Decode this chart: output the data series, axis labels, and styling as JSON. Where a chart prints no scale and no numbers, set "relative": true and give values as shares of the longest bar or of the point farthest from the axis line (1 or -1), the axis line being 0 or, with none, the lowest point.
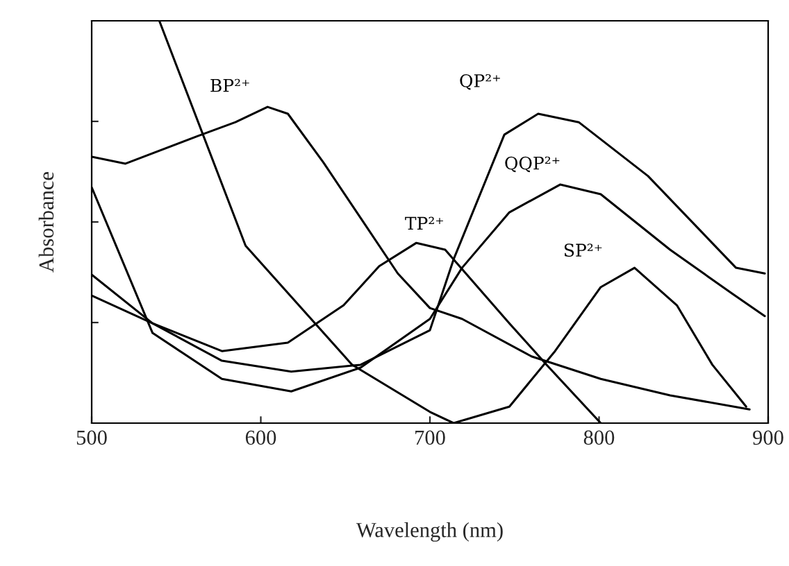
{
  "chart_data": {
    "type": "line",
    "relative": true,
    "xlabel": "Wavelength (nm)",
    "ylabel": "Absorbance",
    "xlim": [
      500,
      900
    ],
    "xticks": [
      500,
      600,
      700,
      800,
      900
    ],
    "grid": false,
    "marker": "none",
    "line_style": "solid",
    "series": [
      {
        "name": "BP²⁺",
        "color": "#000000",
        "x": [
          500,
          520,
          563,
          585,
          604,
          616,
          637,
          659,
          681,
          700,
          719,
          760,
          801,
          842,
          889
        ],
        "values": [
          0.662,
          0.645,
          0.714,
          0.748,
          0.786,
          0.769,
          0.648,
          0.51,
          0.372,
          0.286,
          0.259,
          0.166,
          0.11,
          0.069,
          0.034
        ]
      },
      {
        "name": "TP²⁺",
        "color": "#000000",
        "x": [
          500,
          536,
          577,
          616,
          649,
          670,
          692,
          709,
          747,
          769,
          801
        ],
        "values": [
          0.369,
          0.248,
          0.179,
          0.2,
          0.293,
          0.39,
          0.448,
          0.431,
          0.248,
          0.145,
          0
        ]
      },
      {
        "name": "QP²⁺",
        "color": "#000000",
        "x": [
          500,
          536,
          577,
          618,
          659,
          700,
          714,
          744,
          764,
          788,
          829,
          881,
          898
        ],
        "values": [
          0.317,
          0.248,
          0.155,
          0.128,
          0.145,
          0.231,
          0.407,
          0.717,
          0.769,
          0.748,
          0.614,
          0.386,
          0.372
        ]
      },
      {
        "name": "QQP²⁺",
        "color": "#000000",
        "x": [
          500,
          536,
          577,
          618,
          659,
          700,
          719,
          747,
          777,
          801,
          842,
          879,
          898
        ],
        "values": [
          0.586,
          0.224,
          0.11,
          0.079,
          0.138,
          0.259,
          0.386,
          0.524,
          0.593,
          0.569,
          0.431,
          0.321,
          0.266
        ]
      },
      {
        "name": "SP²⁺",
        "color": "#000000",
        "x": [
          540,
          591,
          654,
          700,
          714,
          747,
          774,
          801,
          821,
          846,
          867,
          887
        ],
        "values": [
          1.0,
          0.441,
          0.145,
          0.028,
          0,
          0.041,
          0.179,
          0.338,
          0.386,
          0.293,
          0.145,
          0.041
        ]
      }
    ]
  }
}
